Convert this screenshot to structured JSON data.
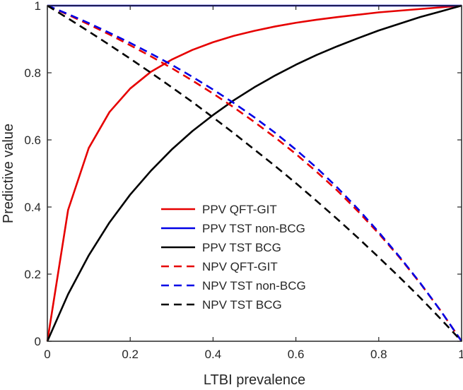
{
  "chart_data": {
    "type": "line",
    "xlabel": "LTBI prevalence",
    "ylabel": "Predictive value",
    "xlim": [
      0,
      1
    ],
    "ylim": [
      0,
      1
    ],
    "xticks": [
      "0",
      "0.2",
      "0.4",
      "0.6",
      "0.8",
      "1"
    ],
    "yticks": [
      "0",
      "0.2",
      "0.4",
      "0.6",
      "0.8",
      "1"
    ],
    "grid": false,
    "legend_position": "center",
    "x": [
      0,
      0.05,
      0.1,
      0.15,
      0.2,
      0.25,
      0.3,
      0.35,
      0.4,
      0.45,
      0.5,
      0.55,
      0.6,
      0.65,
      0.7,
      0.75,
      0.8,
      0.85,
      0.9,
      0.95,
      1
    ],
    "series": [
      {
        "name": "PPV QFT-GIT",
        "color": "#e60000",
        "dash": "solid",
        "values": [
          0,
          0.391,
          0.576,
          0.683,
          0.753,
          0.803,
          0.839,
          0.868,
          0.891,
          0.91,
          0.925,
          0.938,
          0.949,
          0.958,
          0.966,
          0.973,
          0.98,
          0.985,
          0.99,
          0.995,
          1
        ]
      },
      {
        "name": "PPV TST non-BCG",
        "color": "#0000e6",
        "dash": "solid",
        "values": [
          1,
          1,
          1,
          1,
          1,
          1,
          1,
          1,
          1,
          1,
          1,
          1,
          1,
          1,
          1,
          1,
          1,
          1,
          1,
          1,
          1
        ]
      },
      {
        "name": "PPV TST BCG",
        "color": "#000000",
        "dash": "solid",
        "values": [
          0,
          0.14,
          0.256,
          0.354,
          0.437,
          0.508,
          0.571,
          0.626,
          0.674,
          0.718,
          0.757,
          0.792,
          0.824,
          0.853,
          0.879,
          0.903,
          0.926,
          0.946,
          0.966,
          0.983,
          1
        ]
      },
      {
        "name": "NPV QFT-GIT",
        "color": "#e60000",
        "dash": "dashed",
        "values": [
          1,
          0.973,
          0.944,
          0.914,
          0.882,
          0.849,
          0.814,
          0.777,
          0.738,
          0.697,
          0.653,
          0.607,
          0.558,
          0.505,
          0.449,
          0.387,
          0.321,
          0.25,
          0.173,
          0.09,
          0
        ]
      },
      {
        "name": "NPV TST non-BCG",
        "color": "#0000e6",
        "dash": "dashed",
        "values": [
          1,
          0.975,
          0.948,
          0.919,
          0.889,
          0.857,
          0.824,
          0.788,
          0.75,
          0.71,
          0.667,
          0.621,
          0.571,
          0.517,
          0.458,
          0.394,
          0.325,
          0.252,
          0.174,
          0.09,
          0
        ]
      },
      {
        "name": "NPV TST BCG",
        "color": "#000000",
        "dash": "dashed",
        "values": [
          1,
          0.962,
          0.923,
          0.883,
          0.842,
          0.8,
          0.757,
          0.713,
          0.667,
          0.62,
          0.571,
          0.522,
          0.471,
          0.418,
          0.364,
          0.308,
          0.25,
          0.191,
          0.13,
          0.066,
          0
        ]
      }
    ]
  }
}
